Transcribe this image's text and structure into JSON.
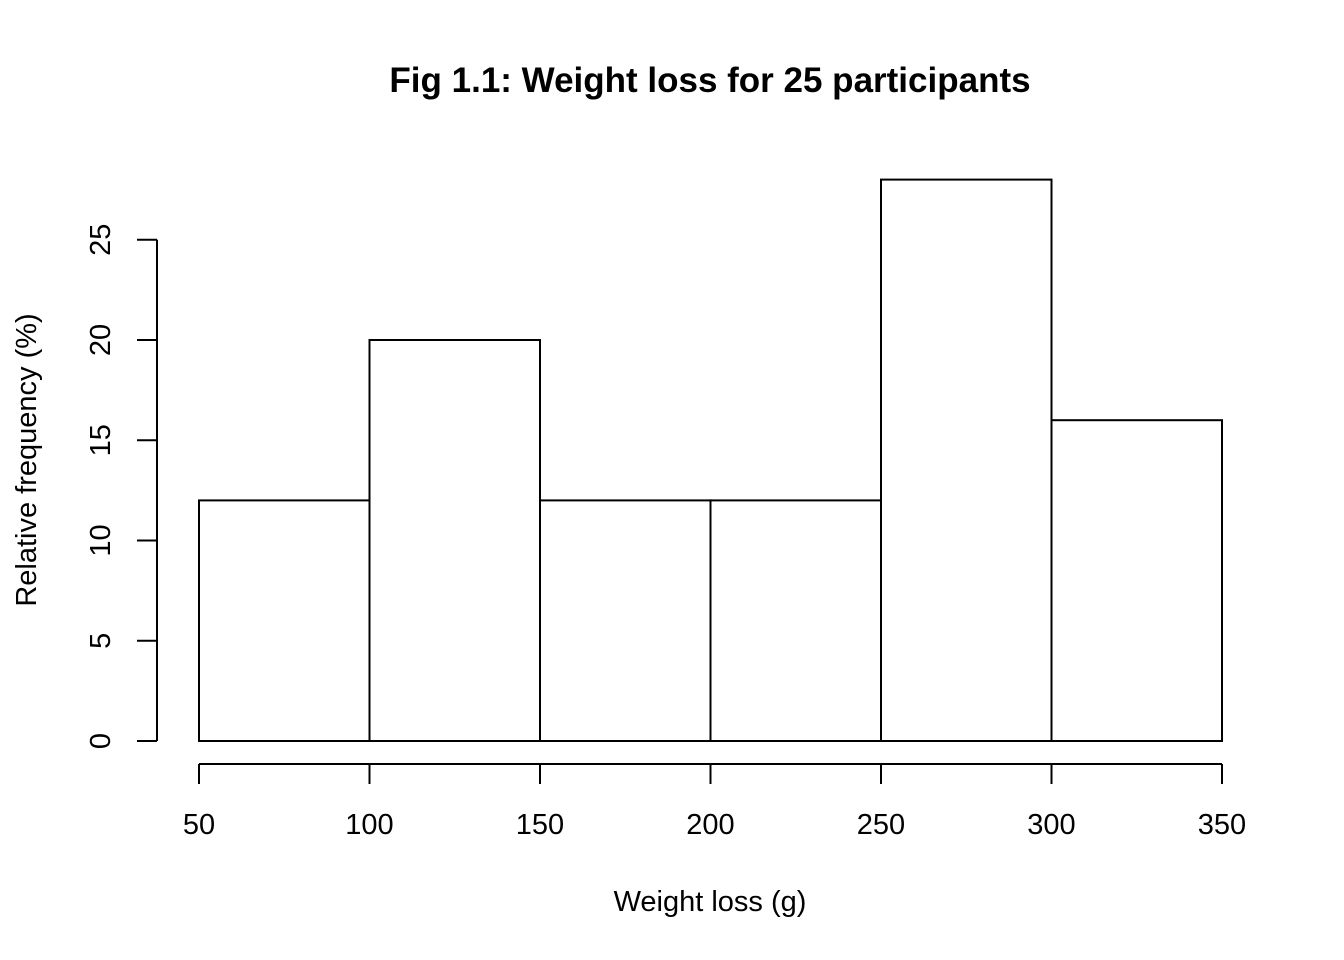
{
  "chart_data": {
    "type": "bar",
    "title": "Fig 1.1: Weight loss for 25 participants",
    "xlabel": "Weight loss (g)",
    "ylabel": "Relative frequency (%)",
    "bins": [
      {
        "start": 50,
        "end": 100,
        "value": 12
      },
      {
        "start": 100,
        "end": 150,
        "value": 20
      },
      {
        "start": 150,
        "end": 200,
        "value": 12
      },
      {
        "start": 200,
        "end": 250,
        "value": 12
      },
      {
        "start": 250,
        "end": 300,
        "value": 28
      },
      {
        "start": 300,
        "end": 350,
        "value": 16
      }
    ],
    "x_ticks": [
      50,
      100,
      150,
      200,
      250,
      300,
      350
    ],
    "y_ticks": [
      0,
      5,
      10,
      15,
      20,
      25
    ],
    "xlim": [
      50,
      350
    ],
    "ylim": [
      0,
      28
    ],
    "grid": false,
    "bar_fill": "#ffffff",
    "bar_stroke": "#000000"
  }
}
